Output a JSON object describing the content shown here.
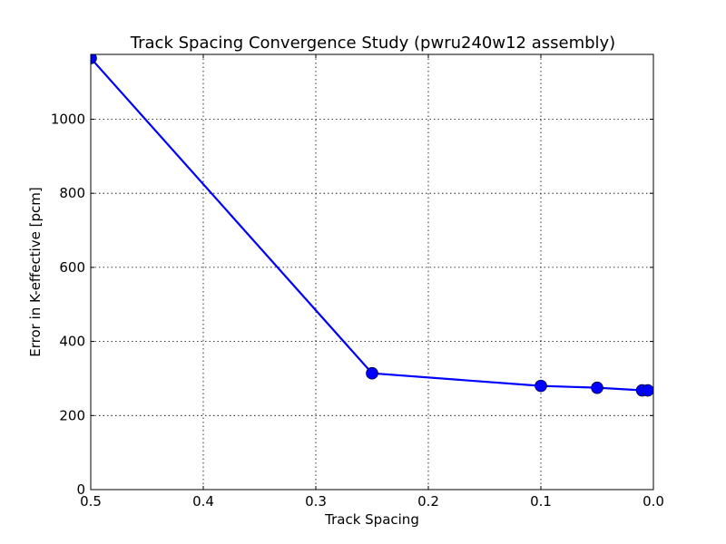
{
  "chart_data": {
    "type": "line",
    "title": "Track Spacing Convergence Study (pwru240w12 assembly)",
    "xlabel": "Track Spacing",
    "ylabel": "Error in K-effective [pcm]",
    "xlim": [
      0.5,
      0.0
    ],
    "ylim": [
      0,
      1175
    ],
    "x_inverted": true,
    "grid": true,
    "x_ticks": [
      0.5,
      0.4,
      0.3,
      0.2,
      0.1,
      0.0
    ],
    "x_tick_labels": [
      "0.5",
      "0.4",
      "0.3",
      "0.2",
      "0.1",
      "0.0"
    ],
    "y_ticks": [
      0,
      200,
      400,
      600,
      800,
      1000
    ],
    "y_tick_labels": [
      "0",
      "200",
      "400",
      "600",
      "800",
      "1000"
    ],
    "series": [
      {
        "color": "#0000ff",
        "marker": "circle",
        "x": [
          0.5,
          0.25,
          0.1,
          0.05,
          0.01,
          0.005
        ],
        "y": [
          1165,
          314,
          280,
          275,
          268,
          268
        ]
      }
    ]
  }
}
